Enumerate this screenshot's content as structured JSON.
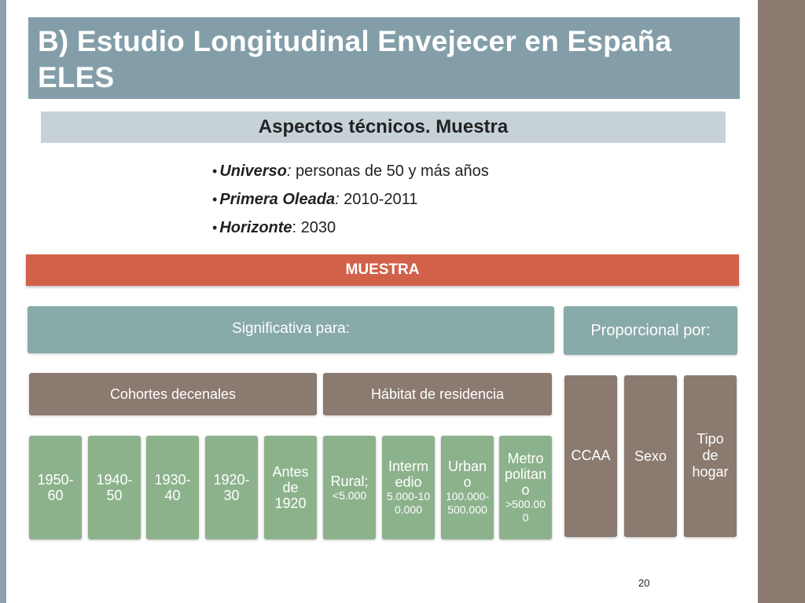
{
  "slide": {
    "title": "B) Estudio Longitudinal Envejecer en España ELES",
    "subtitle": "Aspectos técnicos. Muestra",
    "page_number": "20"
  },
  "bullets": [
    {
      "key": "Universo",
      "sep": ":",
      "value": " personas de 50 y más años"
    },
    {
      "key": "Primera Oleada",
      "sep": ":",
      "value": " 2010-2011"
    },
    {
      "key": "Horizonte",
      "sep": ":",
      "value": " 2030"
    }
  ],
  "diagram": {
    "root": "MUESTRA",
    "significativa": "Significativa  para:",
    "proporcional": "Proporcional por:",
    "cohortes": {
      "label": "Cohortes decenales",
      "items": [
        "1950-60",
        "1940-50",
        "1930-40",
        "1920-30",
        "Antes de 1920"
      ]
    },
    "habitat": {
      "label": "Hábitat de residencia",
      "items": [
        {
          "name": "Rural;",
          "range": "<5.000"
        },
        {
          "name": "Intermedio",
          "range": "5.000-100.000"
        },
        {
          "name": "Urbano",
          "range": "100.000-500.000"
        },
        {
          "name": "Metropolitano",
          "range": ">500.000"
        }
      ]
    },
    "proporcional_items": [
      "CCAA",
      "Sexo",
      "Tipo de hogar"
    ]
  },
  "colors": {
    "title_bg": "#839ea9",
    "subtitle_bg": "#c6d2d8",
    "muestra_bg": "#d2614a",
    "teal": "#88aaa9",
    "brown": "#8a7a6f",
    "green": "#8cb28c"
  }
}
